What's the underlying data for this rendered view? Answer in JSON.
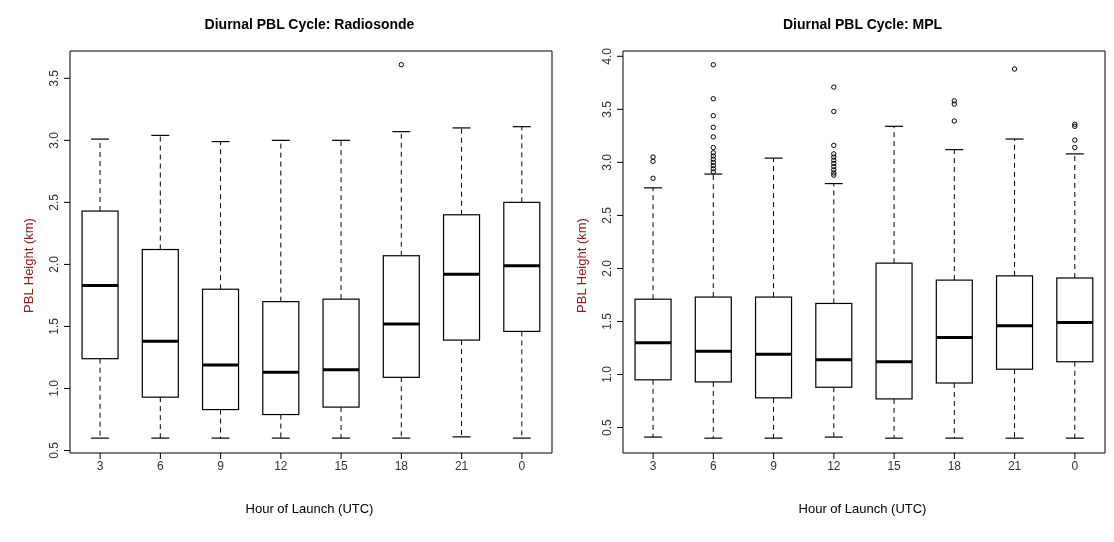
{
  "chart_data": [
    {
      "type": "box",
      "title": "Diurnal PBL Cycle: Radiosonde",
      "xlabel": "Hour of Launch (UTC)",
      "ylabel": "PBL Height (km)",
      "categories": [
        "3",
        "6",
        "9",
        "12",
        "15",
        "18",
        "21",
        "0"
      ],
      "boxes": [
        {
          "low": 0.6,
          "q1": 1.24,
          "median": 1.83,
          "q3": 2.43,
          "high": 3.01
        },
        {
          "low": 0.6,
          "q1": 0.93,
          "median": 1.38,
          "q3": 2.12,
          "high": 3.04
        },
        {
          "low": 0.6,
          "q1": 0.83,
          "median": 1.19,
          "q3": 1.8,
          "high": 2.99
        },
        {
          "low": 0.6,
          "q1": 0.79,
          "median": 1.13,
          "q3": 1.7,
          "high": 3.0
        },
        {
          "low": 0.6,
          "q1": 0.85,
          "median": 1.15,
          "q3": 1.72,
          "high": 3.0
        },
        {
          "low": 0.6,
          "q1": 1.09,
          "median": 1.52,
          "q3": 2.07,
          "high": 3.07,
          "outliers": [
            3.61
          ]
        },
        {
          "low": 0.61,
          "q1": 1.39,
          "median": 1.92,
          "q3": 2.4,
          "high": 3.1
        },
        {
          "low": 0.6,
          "q1": 1.46,
          "median": 1.99,
          "q3": 2.5,
          "high": 3.11
        }
      ],
      "ylim": [
        0.48,
        3.72
      ],
      "yticks": [
        0.5,
        {
          "value": 1,
          "label": "1.0"
        },
        1.5,
        {
          "value": 2,
          "label": "2.0"
        },
        2.5,
        {
          "value": 3,
          "label": "3.0"
        },
        3.5
      ]
    },
    {
      "type": "box",
      "title": "Diurnal PBL Cycle: MPL",
      "xlabel": "Hour of Launch (UTC)",
      "ylabel": "PBL Height (km)",
      "categories": [
        "3",
        "6",
        "9",
        "12",
        "15",
        "18",
        "21",
        "0"
      ],
      "boxes": [
        {
          "low": 0.41,
          "q1": 0.95,
          "median": 1.3,
          "q3": 1.71,
          "high": 2.76,
          "outliers": [
            2.85,
            3.01,
            3.05
          ]
        },
        {
          "low": 0.4,
          "q1": 0.93,
          "median": 1.22,
          "q3": 1.73,
          "high": 2.89,
          "outliers": [
            2.91,
            2.94,
            2.97,
            3.0,
            3.03,
            3.06,
            3.09,
            3.14,
            3.24,
            3.33,
            3.44,
            3.6,
            3.92
          ]
        },
        {
          "low": 0.4,
          "q1": 0.78,
          "median": 1.19,
          "q3": 1.73,
          "high": 3.04
        },
        {
          "low": 0.41,
          "q1": 0.88,
          "median": 1.14,
          "q3": 1.67,
          "high": 2.8,
          "outliers": [
            2.88,
            2.9,
            2.93,
            2.96,
            2.99,
            3.02,
            3.05,
            3.08,
            3.16,
            3.48,
            3.71
          ]
        },
        {
          "low": 0.4,
          "q1": 0.77,
          "median": 1.12,
          "q3": 2.05,
          "high": 3.34
        },
        {
          "low": 0.4,
          "q1": 0.92,
          "median": 1.35,
          "q3": 1.89,
          "high": 3.12,
          "outliers": [
            3.39,
            3.55,
            3.58
          ]
        },
        {
          "low": 0.4,
          "q1": 1.05,
          "median": 1.46,
          "q3": 1.93,
          "high": 3.22,
          "outliers": [
            3.88
          ]
        },
        {
          "low": 0.4,
          "q1": 1.12,
          "median": 1.49,
          "q3": 1.91,
          "high": 3.08,
          "outliers": [
            3.14,
            3.21,
            3.34,
            3.36
          ]
        }
      ],
      "ylim": [
        0.26,
        4.05
      ],
      "yticks": [
        0.5,
        {
          "value": 1,
          "label": "1.0"
        },
        1.5,
        {
          "value": 2,
          "label": "2.0"
        },
        2.5,
        {
          "value": 3,
          "label": "3.0"
        },
        3.5,
        {
          "value": 4,
          "label": "4.0"
        }
      ]
    }
  ]
}
